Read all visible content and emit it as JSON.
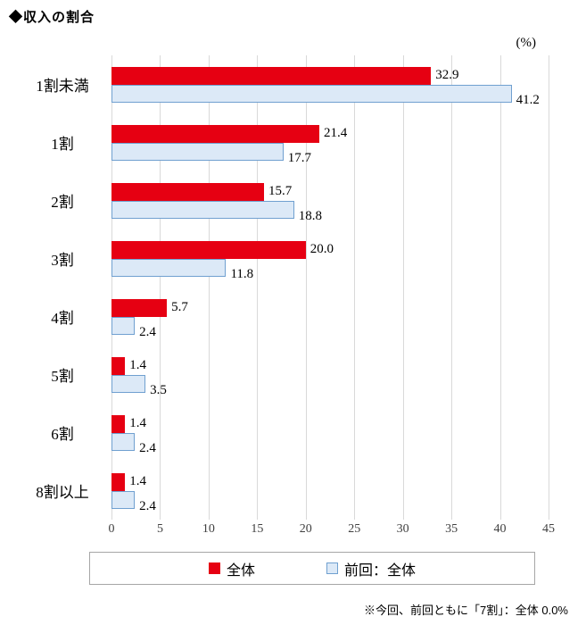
{
  "page": {
    "title": "◆収入の割合",
    "footnote": "※今回、前回ともに「7割」：全体 0.0%"
  },
  "chart_data": {
    "type": "bar",
    "orientation": "horizontal",
    "title": "収入の割合",
    "unit": "(%)",
    "categories": [
      "1割未満",
      "1割",
      "2割",
      "3割",
      "4割",
      "5割",
      "6割",
      "8割以上"
    ],
    "series": [
      {
        "name": "全体",
        "color": "#e60012",
        "values": [
          32.9,
          21.4,
          15.7,
          20.0,
          5.7,
          1.4,
          1.4,
          1.4
        ]
      },
      {
        "name": "前回：全体",
        "fill": "#dce9f7",
        "border": "#70a0d0",
        "values": [
          41.2,
          17.7,
          18.8,
          11.8,
          2.4,
          3.5,
          2.4,
          2.4
        ]
      }
    ],
    "xlim": [
      0,
      45
    ],
    "xticks": [
      0,
      5,
      10,
      15,
      20,
      25,
      30,
      35,
      40,
      45
    ],
    "grid": true,
    "gridline_color": "#d9d9d9",
    "legend_position": "bottom"
  }
}
